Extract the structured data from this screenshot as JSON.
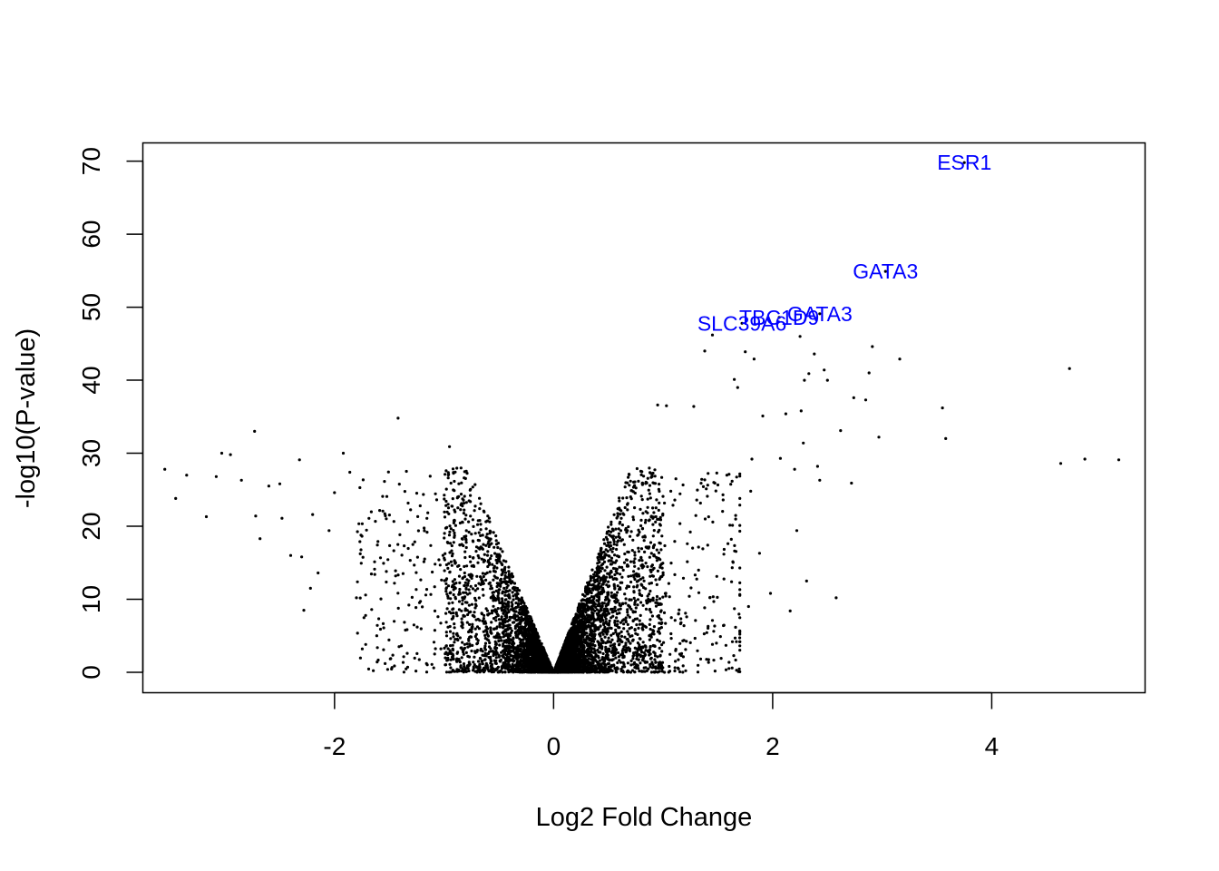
{
  "chart_data": {
    "type": "scatter",
    "title": "",
    "xlabel": "Log2 Fold Change",
    "ylabel": "-log10(P-value)",
    "xlim": [
      -3.75,
      5.4
    ],
    "ylim": [
      -2.8,
      72.5
    ],
    "x_ticks": [
      -2,
      0,
      2,
      4
    ],
    "x_tick_labels": [
      "-2",
      "0",
      "2",
      "4"
    ],
    "y_ticks": [
      0,
      10,
      20,
      30,
      40,
      50,
      60,
      70
    ],
    "y_tick_labels": [
      "0",
      "10",
      "20",
      "30",
      "40",
      "50",
      "60",
      "70"
    ],
    "grid": false,
    "legend": "none",
    "point_color": "#000000",
    "label_color": "#0000ff",
    "labeled_points": [
      {
        "label": "ESR1",
        "x": 3.75,
        "y": 69.8
      },
      {
        "label": "GATA3",
        "x": 3.03,
        "y": 54.9
      },
      {
        "label": "GATA3",
        "x": 2.43,
        "y": 49.1
      },
      {
        "label": "TBC1D9",
        "x": 2.06,
        "y": 48.6
      },
      {
        "label": "SLC39A6",
        "x": 1.72,
        "y": 47.8
      }
    ],
    "points": [
      {
        "x": -3.55,
        "y": 27.8
      },
      {
        "x": -3.45,
        "y": 23.8
      },
      {
        "x": -3.35,
        "y": 27.0
      },
      {
        "x": -3.17,
        "y": 21.3
      },
      {
        "x": -3.08,
        "y": 26.8
      },
      {
        "x": -3.03,
        "y": 30.0
      },
      {
        "x": -2.95,
        "y": 29.8
      },
      {
        "x": -2.85,
        "y": 26.3
      },
      {
        "x": -2.73,
        "y": 33.0
      },
      {
        "x": -2.72,
        "y": 21.4
      },
      {
        "x": -2.68,
        "y": 18.3
      },
      {
        "x": -2.6,
        "y": 25.5
      },
      {
        "x": -2.5,
        "y": 25.8
      },
      {
        "x": -2.48,
        "y": 21.1
      },
      {
        "x": -2.4,
        "y": 16.0
      },
      {
        "x": -2.32,
        "y": 29.1
      },
      {
        "x": -2.3,
        "y": 15.8
      },
      {
        "x": -2.28,
        "y": 8.5
      },
      {
        "x": -2.22,
        "y": 11.5
      },
      {
        "x": -2.2,
        "y": 21.6
      },
      {
        "x": -2.15,
        "y": 13.6
      },
      {
        "x": -2.05,
        "y": 19.4
      },
      {
        "x": -2.0,
        "y": 24.6
      },
      {
        "x": -1.92,
        "y": 30.0
      },
      {
        "x": -1.86,
        "y": 27.4
      },
      {
        "x": -1.8,
        "y": 10.2
      },
      {
        "x": -1.42,
        "y": 34.8
      },
      {
        "x": -0.95,
        "y": 30.9
      },
      {
        "x": 0.95,
        "y": 36.6
      },
      {
        "x": 1.03,
        "y": 36.5
      },
      {
        "x": 1.28,
        "y": 36.4
      },
      {
        "x": 1.38,
        "y": 44.0
      },
      {
        "x": 1.45,
        "y": 46.2
      },
      {
        "x": 1.55,
        "y": 6.4
      },
      {
        "x": 1.65,
        "y": 40.1
      },
      {
        "x": 1.68,
        "y": 39.0
      },
      {
        "x": 1.75,
        "y": 43.9
      },
      {
        "x": 1.78,
        "y": 9.0
      },
      {
        "x": 1.8,
        "y": 24.8
      },
      {
        "x": 1.81,
        "y": 29.2
      },
      {
        "x": 1.83,
        "y": 42.9
      },
      {
        "x": 1.88,
        "y": 16.3
      },
      {
        "x": 1.91,
        "y": 35.1
      },
      {
        "x": 1.98,
        "y": 10.8
      },
      {
        "x": 2.07,
        "y": 29.3
      },
      {
        "x": 2.12,
        "y": 35.4
      },
      {
        "x": 2.16,
        "y": 8.4
      },
      {
        "x": 2.2,
        "y": 27.8
      },
      {
        "x": 2.22,
        "y": 19.4
      },
      {
        "x": 2.25,
        "y": 46.0
      },
      {
        "x": 2.26,
        "y": 35.8
      },
      {
        "x": 2.28,
        "y": 31.4
      },
      {
        "x": 2.29,
        "y": 40.0
      },
      {
        "x": 2.31,
        "y": 12.5
      },
      {
        "x": 2.33,
        "y": 40.9
      },
      {
        "x": 2.38,
        "y": 43.6
      },
      {
        "x": 2.41,
        "y": 28.2
      },
      {
        "x": 2.43,
        "y": 26.3
      },
      {
        "x": 2.47,
        "y": 41.4
      },
      {
        "x": 2.5,
        "y": 40.0
      },
      {
        "x": 2.58,
        "y": 10.2
      },
      {
        "x": 2.62,
        "y": 33.1
      },
      {
        "x": 2.72,
        "y": 25.9
      },
      {
        "x": 2.74,
        "y": 37.6
      },
      {
        "x": 2.85,
        "y": 37.3
      },
      {
        "x": 2.88,
        "y": 41.0
      },
      {
        "x": 2.91,
        "y": 44.6
      },
      {
        "x": 2.97,
        "y": 32.2
      },
      {
        "x": 3.16,
        "y": 42.9
      },
      {
        "x": 3.55,
        "y": 36.2
      },
      {
        "x": 3.58,
        "y": 32.0
      },
      {
        "x": 4.63,
        "y": 28.6
      },
      {
        "x": 4.71,
        "y": 41.6
      },
      {
        "x": 4.85,
        "y": 29.2
      },
      {
        "x": 5.16,
        "y": 29.1
      }
    ]
  }
}
